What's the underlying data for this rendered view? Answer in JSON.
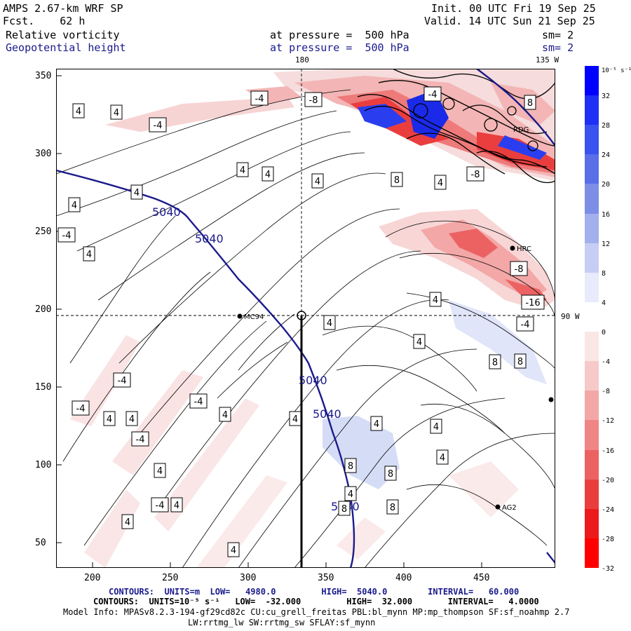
{
  "header": {
    "model": "AMPS 2.67-km WRF SP",
    "forecast": "Fcst.    62 h",
    "init": "Init. 00 UTC Fri 19 Sep 25",
    "valid": "Valid. 14 UTC Sun 21 Sep 25",
    "field1": "Relative vorticity",
    "field1_level": "at pressure =  500 hPa",
    "field1_sm": "sm= 2",
    "field2": "Geopotential height",
    "field2_level": "at pressure =  500 hPa",
    "field2_sm": "sm= 2"
  },
  "map": {
    "top_label_180": "180",
    "top_label_135w": "135 W",
    "right_label_90w": "90 W",
    "x_ticks": [
      "200",
      "250",
      "300",
      "350",
      "400",
      "450"
    ],
    "y_ticks": [
      "350",
      "300",
      "250",
      "200",
      "150",
      "100",
      "50"
    ],
    "height_labels": [
      "5040",
      "5040",
      "5040",
      "5040",
      "5040"
    ],
    "vort_labels": [
      "-4",
      "-4",
      "-8",
      "-4",
      "-8",
      "4",
      "4",
      "4",
      "4",
      "8",
      "4",
      "8",
      "4",
      "4",
      "4",
      "-8",
      "-16",
      "-4",
      "-4",
      "4",
      "4",
      "4",
      "4",
      "-4",
      "-4",
      "-4",
      "-4",
      "4",
      "4",
      "4",
      "4",
      "4",
      "8",
      "8",
      "8",
      "8",
      "4",
      "4",
      "4",
      "4",
      "4",
      "-4",
      "4",
      "8",
      "8",
      "4"
    ],
    "stations": [
      "MC94",
      "HRC",
      "RDG",
      "AG2"
    ]
  },
  "colorbar": {
    "unit": "10⁻⁵ s⁻¹",
    "labels": [
      "32",
      "28",
      "24",
      "20",
      "16",
      "12",
      "8",
      "4",
      "0",
      "-4",
      "-8",
      "-12",
      "-16",
      "-20",
      "-24",
      "-28",
      "-32"
    ],
    "colors": [
      "#0000ff",
      "#1e30f5",
      "#3a52ee",
      "#5a6ee8",
      "#7d8ee6",
      "#a2b0ee",
      "#c6cef5",
      "#e8ebfb",
      "#ffffff",
      "#fbe6e6",
      "#f7c9c9",
      "#f3a7a7",
      "#ef8585",
      "#ec6262",
      "#ea3e3e",
      "#ec1a1a",
      "#ff0000"
    ]
  },
  "footer": {
    "line1": "CONTOURS:  UNITS=m  LOW=   4980.0         HIGH=  5040.0        INTERVAL=   60.000",
    "line2": "CONTOURS:  UNITS=10⁻⁵ s⁻¹   LOW=  -32.000         HIGH=  32.000       INTERVAL=   4.0000",
    "line3": "Model Info: MPASv8.2.3-194-gf29cd82c CU:cu_grell_freitas PBL:bl_mynn MP:mp_thompson SF:sf_noahmp 2.7",
    "line4": "LW:rrtmg_lw SW:rrtmg_sw SFLAY:sf_mynn"
  }
}
